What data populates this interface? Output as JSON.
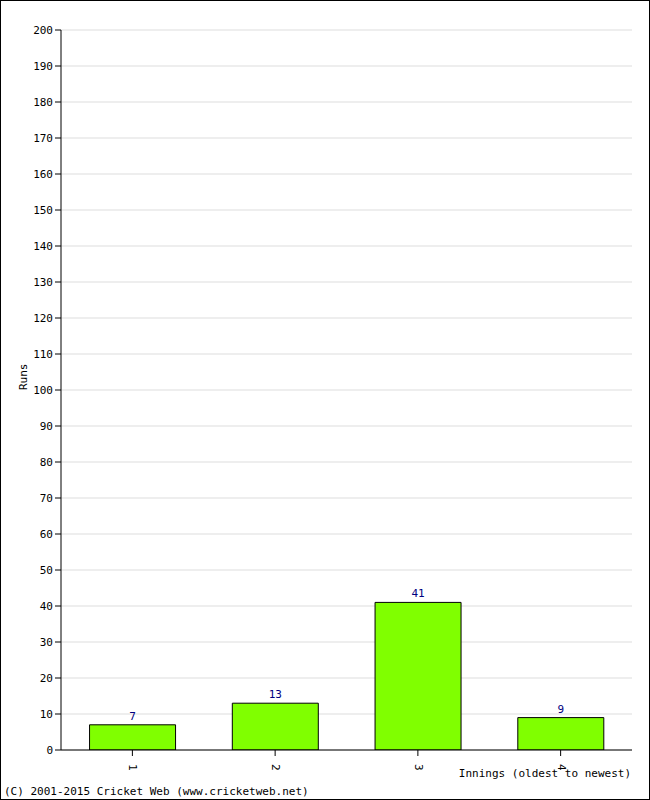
{
  "chart_data": {
    "type": "bar",
    "categories": [
      "1",
      "2",
      "3",
      "4"
    ],
    "values": [
      7,
      13,
      41,
      9
    ],
    "color": "#80ff00",
    "ylim": [
      0,
      200
    ],
    "yticks": [
      0,
      10,
      20,
      30,
      40,
      50,
      60,
      70,
      80,
      90,
      100,
      110,
      120,
      130,
      140,
      150,
      160,
      170,
      180,
      190,
      200
    ],
    "grid": true,
    "data_labels": true,
    "x_label": "Innings (oldest to newest)",
    "y_label": "Runs",
    "annotations": [
      "(C) 2001-2015 Cricket Web (www.cricketweb.net)"
    ]
  }
}
